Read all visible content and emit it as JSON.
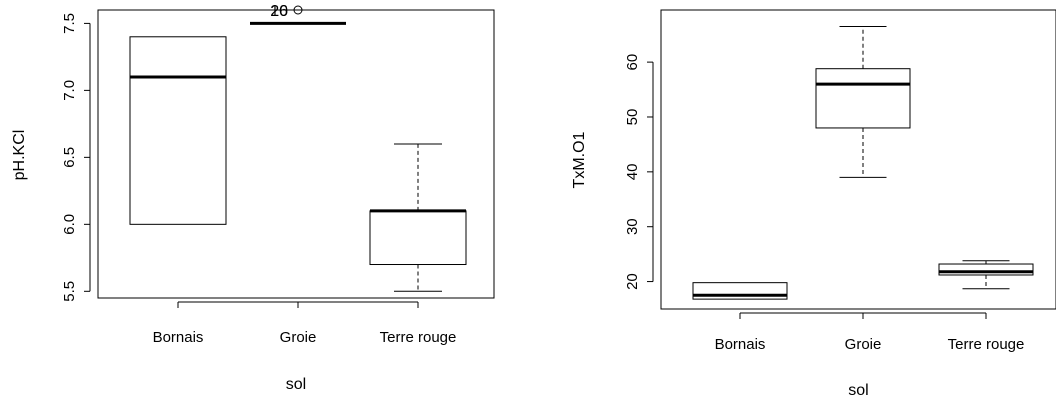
{
  "chart_data": [
    {
      "type": "box",
      "xlabel": "sol",
      "ylabel": "pH.KCl",
      "categories": [
        "Bornais",
        "Groie",
        "Terre rouge"
      ],
      "yticks": [
        "5.5",
        "6.0",
        "6.5",
        "7.0",
        "7.5"
      ],
      "ylim": [
        5.45,
        7.6
      ],
      "boxes": [
        {
          "category": "Bornais",
          "min": 6.0,
          "q1": 6.0,
          "median": 7.1,
          "q3": 7.4,
          "max": 7.4
        },
        {
          "category": "Groie",
          "min": 7.5,
          "q1": 7.5,
          "median": 7.5,
          "q3": 7.5,
          "max": 7.5
        },
        {
          "category": "Terre rouge",
          "min": 5.5,
          "q1": 5.7,
          "median": 6.1,
          "q3": 6.1,
          "max": 6.6
        }
      ],
      "outliers": [
        {
          "category": "Groie",
          "value": 7.6,
          "labels": [
            "20",
            "16"
          ]
        }
      ]
    },
    {
      "type": "box",
      "xlabel": "sol",
      "ylabel": "TxM.O1",
      "categories": [
        "Bornais",
        "Groie",
        "Terre rouge"
      ],
      "yticks": [
        "20",
        "30",
        "40",
        "50",
        "60"
      ],
      "ylim": [
        15,
        69.5
      ],
      "boxes": [
        {
          "category": "Bornais",
          "min": 16.8,
          "q1": 16.8,
          "median": 17.5,
          "q3": 19.8,
          "max": 19.8
        },
        {
          "category": "Groie",
          "min": 39.0,
          "q1": 48.0,
          "median": 56.0,
          "q3": 58.8,
          "max": 66.5
        },
        {
          "category": "Terre rouge",
          "min": 18.7,
          "q1": 21.2,
          "median": 21.8,
          "q3": 23.2,
          "max": 23.8
        }
      ],
      "outliers": []
    }
  ]
}
